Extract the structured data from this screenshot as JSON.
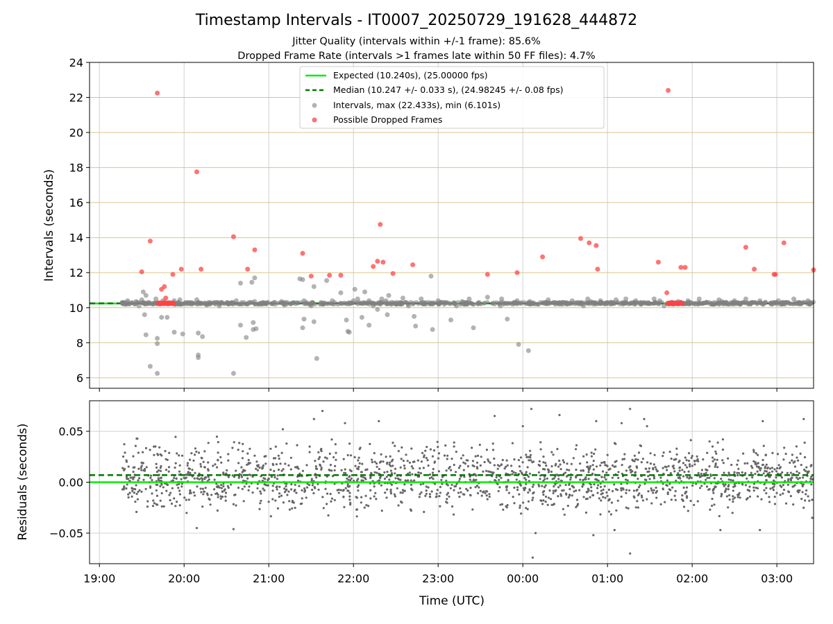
{
  "chart_data": [
    {
      "type": "scatter",
      "title": "Timestamp Intervals - IT0007_20250729_191628_444872",
      "subtitle_lines": [
        "Jitter Quality (intervals within +/-1 frame): 85.6%",
        "Dropped Frame Rate (intervals >1 frames late within 50 FF files): 4.7%"
      ],
      "xlabel": "",
      "ylabel": "Intervals (seconds)",
      "xlim": [
        "18:53",
        "03:26"
      ],
      "ylim": [
        5.4,
        24
      ],
      "x_ticks": [
        "19:00",
        "20:00",
        "21:00",
        "22:00",
        "23:00",
        "00:00",
        "01:00",
        "02:00",
        "03:00"
      ],
      "y_ticks": [
        6,
        8,
        10,
        12,
        14,
        16,
        18,
        20,
        22,
        24
      ],
      "grid": {
        "x": "gray",
        "y": "goldenrod"
      },
      "legend_position": "upper center",
      "legend": [
        "Expected (10.240s), (25.00000 fps)",
        "Median (10.247 +/- 0.033 s), (24.98245 +/- 0.08 fps)",
        "Intervals, max (22.433s), min (6.101s)",
        "Possible Dropped Frames"
      ],
      "expected_interval": 10.24,
      "median_interval": 10.247,
      "start_time": "19:16",
      "end_time": "03:26",
      "main_band": [
        10.18,
        10.32
      ],
      "interval_outliers": [
        [
          "19:20",
          10.4
        ],
        [
          "19:26",
          10.35
        ],
        [
          "19:28",
          10.1
        ],
        [
          "19:30",
          10.45
        ],
        [
          "19:31",
          10.9
        ],
        [
          "19:32",
          9.6
        ],
        [
          "19:33",
          10.7
        ],
        [
          "19:33",
          8.45
        ],
        [
          "19:35",
          10.3
        ],
        [
          "19:36",
          6.65
        ],
        [
          "19:38",
          10.2
        ],
        [
          "19:40",
          10.5
        ],
        [
          "19:41",
          8.25
        ],
        [
          "19:41",
          7.95
        ],
        [
          "19:41",
          6.25
        ],
        [
          "19:44",
          9.45
        ],
        [
          "19:45",
          10.4
        ],
        [
          "19:48",
          9.45
        ],
        [
          "19:51",
          10.25
        ],
        [
          "19:53",
          10.4
        ],
        [
          "19:53",
          8.6
        ],
        [
          "19:57",
          10.45
        ],
        [
          "19:59",
          8.5
        ],
        [
          "20:01",
          10.3
        ],
        [
          "20:05",
          10.25
        ],
        [
          "20:09",
          10.45
        ],
        [
          "20:10",
          7.3
        ],
        [
          "20:10",
          7.15
        ],
        [
          "20:10",
          8.55
        ],
        [
          "20:13",
          8.35
        ],
        [
          "20:16",
          10.15
        ],
        [
          "20:22",
          10.3
        ],
        [
          "20:25",
          10.1
        ],
        [
          "20:34",
          10.3
        ],
        [
          "20:35",
          6.25
        ],
        [
          "20:37",
          10.4
        ],
        [
          "20:40",
          11.4
        ],
        [
          "20:40",
          9.0
        ],
        [
          "20:44",
          8.3
        ],
        [
          "20:46",
          10.3
        ],
        [
          "20:48",
          11.45
        ],
        [
          "20:49",
          9.15
        ],
        [
          "20:49",
          8.75
        ],
        [
          "20:50",
          11.7
        ],
        [
          "20:50",
          10.35
        ],
        [
          "20:51",
          8.8
        ],
        [
          "20:56",
          10.3
        ],
        [
          "21:04",
          10.3
        ],
        [
          "21:09",
          10.35
        ],
        [
          "21:11",
          10.15
        ],
        [
          "21:22",
          11.65
        ],
        [
          "21:24",
          8.85
        ],
        [
          "21:24",
          11.6
        ],
        [
          "21:25",
          9.35
        ],
        [
          "21:25",
          10.4
        ],
        [
          "21:30",
          10.1
        ],
        [
          "21:32",
          11.2
        ],
        [
          "21:32",
          9.2
        ],
        [
          "21:34",
          7.1
        ],
        [
          "21:37",
          10.3
        ],
        [
          "21:41",
          11.55
        ],
        [
          "21:45",
          10.4
        ],
        [
          "21:49",
          10.2
        ],
        [
          "21:51",
          10.85
        ],
        [
          "21:55",
          9.3
        ],
        [
          "21:56",
          8.65
        ],
        [
          "21:57",
          8.6
        ],
        [
          "22:00",
          10.4
        ],
        [
          "22:01",
          11.05
        ],
        [
          "22:03",
          10.5
        ],
        [
          "22:06",
          9.45
        ],
        [
          "22:07",
          10.3
        ],
        [
          "22:08",
          10.9
        ],
        [
          "22:11",
          10.4
        ],
        [
          "22:11",
          9.0
        ],
        [
          "22:14",
          10.1
        ],
        [
          "22:17",
          9.9
        ],
        [
          "22:20",
          10.5
        ],
        [
          "22:23",
          10.4
        ],
        [
          "22:24",
          9.6
        ],
        [
          "22:25",
          10.7
        ],
        [
          "22:27",
          10.3
        ],
        [
          "22:30",
          10.2
        ],
        [
          "22:35",
          10.55
        ],
        [
          "22:39",
          10.1
        ],
        [
          "22:43",
          9.5
        ],
        [
          "22:44",
          8.95
        ],
        [
          "22:48",
          10.5
        ],
        [
          "22:53",
          10.3
        ],
        [
          "22:55",
          11.8
        ],
        [
          "22:56",
          8.75
        ],
        [
          "23:00",
          10.4
        ],
        [
          "23:05",
          10.3
        ],
        [
          "23:09",
          9.3
        ],
        [
          "23:13",
          10.1
        ],
        [
          "23:17",
          10.35
        ],
        [
          "23:22",
          10.5
        ],
        [
          "23:25",
          8.85
        ],
        [
          "23:29",
          10.3
        ],
        [
          "23:35",
          10.6
        ],
        [
          "23:44",
          10.1
        ],
        [
          "23:45",
          10.5
        ],
        [
          "23:49",
          9.35
        ],
        [
          "23:54",
          10.3
        ],
        [
          "23:56",
          10.4
        ],
        [
          "23:57",
          7.9
        ],
        [
          "24:04",
          7.55
        ],
        [
          "24:05",
          10.35
        ],
        [
          "24:11",
          10.2
        ],
        [
          "24:18",
          10.45
        ],
        [
          "24:22",
          10.3
        ],
        [
          "24:31",
          10.2
        ],
        [
          "24:35",
          10.4
        ],
        [
          "24:39",
          10.3
        ],
        [
          "24:43",
          10.1
        ],
        [
          "24:46",
          10.5
        ],
        [
          "24:48",
          10.35
        ],
        [
          "24:55",
          10.4
        ],
        [
          "25:06",
          10.45
        ],
        [
          "25:13",
          10.5
        ],
        [
          "25:20",
          10.4
        ],
        [
          "25:24",
          10.3
        ],
        [
          "25:33",
          10.5
        ],
        [
          "25:37",
          10.4
        ],
        [
          "25:40",
          10.1
        ],
        [
          "25:45",
          10.3
        ],
        [
          "25:50",
          10.35
        ],
        [
          "25:57",
          10.4
        ],
        [
          "26:02",
          10.2
        ],
        [
          "26:05",
          10.5
        ],
        [
          "26:10",
          10.3
        ],
        [
          "26:14",
          10.2
        ],
        [
          "26:19",
          10.45
        ],
        [
          "26:21",
          10.35
        ],
        [
          "26:24",
          10.3
        ],
        [
          "26:30",
          10.4
        ],
        [
          "26:34",
          10.2
        ],
        [
          "26:38",
          10.5
        ],
        [
          "26:42",
          10.3
        ],
        [
          "26:48",
          10.4
        ],
        [
          "26:52",
          10.3
        ],
        [
          "26:56",
          10.2
        ],
        [
          "27:01",
          10.4
        ],
        [
          "27:08",
          10.3
        ],
        [
          "27:12",
          10.5
        ],
        [
          "27:16",
          10.3
        ],
        [
          "27:22",
          10.4
        ],
        [
          "27:24",
          10.3
        ]
      ],
      "dropped_frames": [
        [
          "19:30",
          12.05
        ],
        [
          "19:36",
          13.8
        ],
        [
          "19:41",
          22.25
        ],
        [
          "19:44",
          11.05
        ],
        [
          "19:46",
          11.2
        ],
        [
          "19:47",
          10.55
        ],
        [
          "19:52",
          11.9
        ],
        [
          "19:58",
          12.2
        ],
        [
          "20:09",
          17.75
        ],
        [
          "20:12",
          12.2
        ],
        [
          "20:35",
          14.05
        ],
        [
          "20:45",
          12.2
        ],
        [
          "20:50",
          13.3
        ],
        [
          "21:24",
          13.1
        ],
        [
          "21:30",
          11.8
        ],
        [
          "21:43",
          11.85
        ],
        [
          "21:51",
          11.85
        ],
        [
          "22:14",
          12.35
        ],
        [
          "22:17",
          12.65
        ],
        [
          "22:19",
          14.75
        ],
        [
          "22:21",
          12.6
        ],
        [
          "22:28",
          11.95
        ],
        [
          "22:42",
          12.45
        ],
        [
          "23:35",
          11.9
        ],
        [
          "23:56",
          12.0
        ],
        [
          "24:14",
          12.9
        ],
        [
          "24:41",
          13.95
        ],
        [
          "24:47",
          13.7
        ],
        [
          "24:52",
          13.55
        ],
        [
          "24:53",
          12.2
        ],
        [
          "25:36",
          12.6
        ],
        [
          "25:42",
          10.85
        ],
        [
          "25:43",
          22.4
        ],
        [
          "25:52",
          12.3
        ],
        [
          "25:55",
          12.3
        ],
        [
          "26:38",
          13.45
        ],
        [
          "26:44",
          12.2
        ],
        [
          "26:58",
          11.9
        ],
        [
          "26:59",
          11.9
        ],
        [
          "27:05",
          13.7
        ],
        [
          "27:26",
          12.15
        ]
      ],
      "dropped_frame_clusters": [
        [
          "19:42",
          "19:53",
          10.25
        ],
        [
          "25:43",
          "25:53",
          10.25
        ]
      ]
    },
    {
      "type": "scatter",
      "xlabel": "Time (UTC)",
      "ylabel": "Residuals (seconds)",
      "xlim": [
        "18:53",
        "03:26"
      ],
      "ylim": [
        -0.08,
        0.08
      ],
      "x_ticks": [
        "19:00",
        "20:00",
        "21:00",
        "22:00",
        "23:00",
        "00:00",
        "01:00",
        "02:00",
        "03:00"
      ],
      "y_ticks": [
        -0.05,
        0.0,
        0.05
      ],
      "y_tick_labels": [
        "−0.05",
        "0.00",
        "0.05"
      ],
      "grid": {
        "x": "gray",
        "y": "gray"
      },
      "expected_residual": 0.0,
      "median_residual": 0.007,
      "residual_spread": {
        "core_min": -0.04,
        "core_max": 0.045,
        "extreme_min": -0.075,
        "extreme_max": 0.072
      },
      "residual_point_count": 1800,
      "residual_outliers": [
        [
          "20:09",
          -0.045
        ],
        [
          "20:35",
          -0.046
        ],
        [
          "21:10",
          0.052
        ],
        [
          "21:32",
          0.062
        ],
        [
          "21:38",
          0.07
        ],
        [
          "21:54",
          0.058
        ],
        [
          "22:18",
          0.06
        ],
        [
          "23:40",
          0.065
        ],
        [
          "24:00",
          0.055
        ],
        [
          "24:06",
          0.072
        ],
        [
          "24:07",
          -0.074
        ],
        [
          "24:09",
          -0.05
        ],
        [
          "24:26",
          0.066
        ],
        [
          "24:50",
          -0.052
        ],
        [
          "24:52",
          0.06
        ],
        [
          "25:05",
          -0.047
        ],
        [
          "25:10",
          0.058
        ],
        [
          "25:16",
          0.072
        ],
        [
          "25:16",
          -0.07
        ],
        [
          "25:26",
          0.062
        ],
        [
          "25:28",
          0.055
        ],
        [
          "26:20",
          -0.047
        ],
        [
          "26:48",
          -0.047
        ],
        [
          "26:50",
          0.06
        ],
        [
          "27:19",
          0.062
        ],
        [
          "27:25",
          -0.035
        ]
      ]
    }
  ],
  "colors": {
    "expected": "#00ee00",
    "median": "#007700",
    "intervals": "#808080",
    "dropped": "#ff4444",
    "grid_x": "#d0d0d0",
    "grid_y_top": "#d9c58a",
    "residuals": "#666666"
  }
}
